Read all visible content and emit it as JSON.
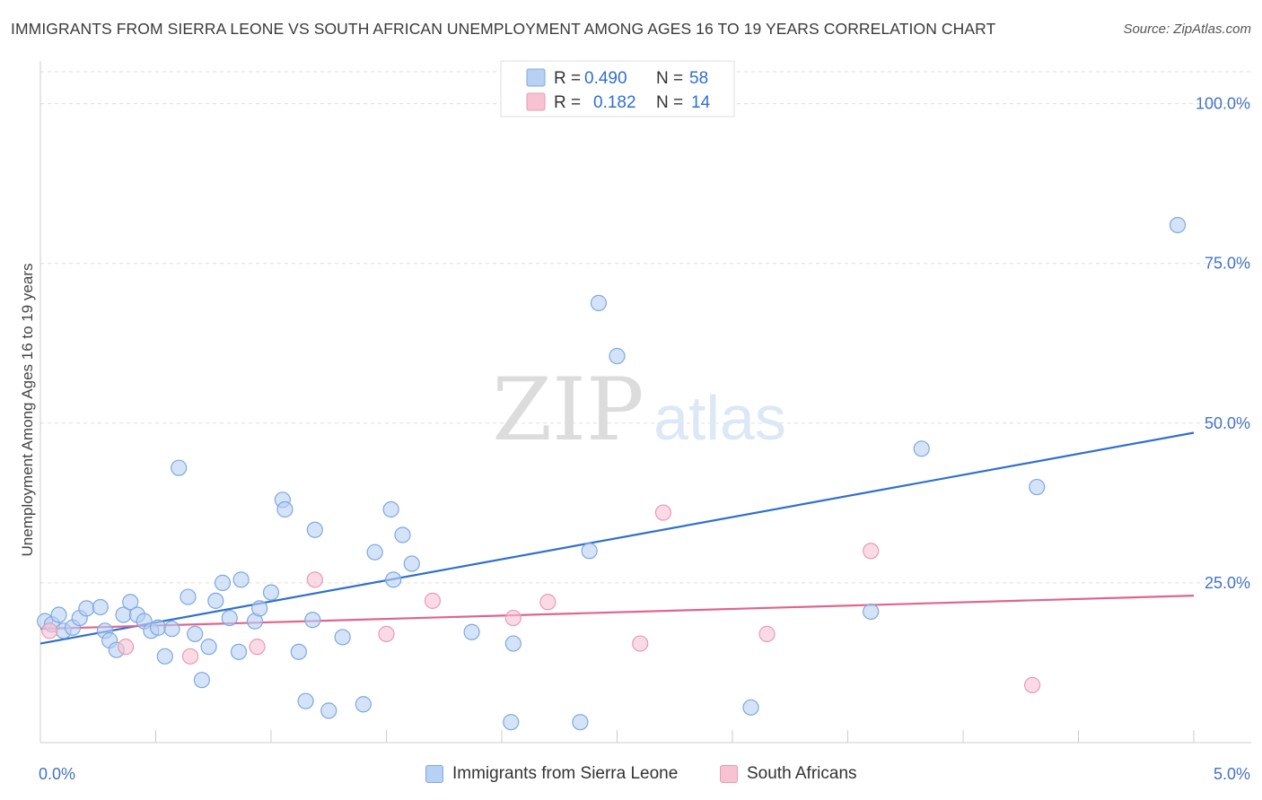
{
  "title": "IMMIGRANTS FROM SIERRA LEONE VS SOUTH AFRICAN UNEMPLOYMENT AMONG AGES 16 TO 19 YEARS CORRELATION CHART",
  "source": "Source: ZipAtlas.com",
  "watermark": {
    "zip": "ZIP",
    "atlas": "atlas"
  },
  "colors": {
    "blue_fill": "#b7d0f3",
    "blue_stroke": "#7ea8e0",
    "blue_line": "#2f6fd1",
    "pink_fill": "#f7c3d3",
    "pink_stroke": "#ea9ab3",
    "pink_line": "#e0648f",
    "axis_text": "#4472c4",
    "grid": "#dddddd"
  },
  "legend": {
    "series1": {
      "r_label": "R =",
      "r_value": "0.490",
      "n_label": "N =",
      "n_value": "58"
    },
    "series2": {
      "r_label": "R =",
      "r_value": "0.182",
      "n_label": "N =",
      "n_value": "14"
    }
  },
  "chart_data": {
    "type": "scatter",
    "title": "IMMIGRANTS FROM SIERRA LEONE VS SOUTH AFRICAN UNEMPLOYMENT AMONG AGES 16 TO 19 YEARS CORRELATION CHART",
    "xlabel": "",
    "ylabel": "Unemployment Among Ages 16 to 19 years",
    "xlim": [
      0,
      5
    ],
    "ylim": [
      0,
      105
    ],
    "x_tick_labels": [
      "0.0%",
      "5.0%"
    ],
    "y_ticks": [
      25,
      50,
      75,
      100
    ],
    "y_tick_labels": [
      "25.0%",
      "50.0%",
      "75.0%",
      "100.0%"
    ],
    "grid": true,
    "series": [
      {
        "name": "Immigrants from Sierra Leone",
        "color": "blue",
        "points": [
          [
            0.02,
            19.0
          ],
          [
            0.05,
            18.5
          ],
          [
            0.08,
            20.0
          ],
          [
            0.1,
            17.5
          ],
          [
            0.14,
            18.0
          ],
          [
            0.17,
            19.5
          ],
          [
            0.2,
            21.0
          ],
          [
            0.26,
            21.2
          ],
          [
            0.28,
            17.5
          ],
          [
            0.3,
            16.0
          ],
          [
            0.33,
            14.5
          ],
          [
            0.36,
            20.0
          ],
          [
            0.39,
            22.0
          ],
          [
            0.42,
            20.0
          ],
          [
            0.45,
            19.0
          ],
          [
            0.48,
            17.5
          ],
          [
            0.51,
            18.0
          ],
          [
            0.54,
            13.5
          ],
          [
            0.57,
            17.8
          ],
          [
            0.6,
            43.0
          ],
          [
            0.64,
            22.8
          ],
          [
            0.67,
            17.0
          ],
          [
            0.7,
            9.8
          ],
          [
            0.73,
            15.0
          ],
          [
            0.76,
            22.2
          ],
          [
            0.79,
            25.0
          ],
          [
            0.82,
            19.5
          ],
          [
            0.86,
            14.2
          ],
          [
            0.87,
            25.5
          ],
          [
            0.93,
            19.0
          ],
          [
            0.95,
            21.0
          ],
          [
            1.0,
            23.5
          ],
          [
            1.05,
            38.0
          ],
          [
            1.06,
            36.5
          ],
          [
            1.12,
            14.2
          ],
          [
            1.15,
            6.5
          ],
          [
            1.18,
            19.2
          ],
          [
            1.19,
            33.3
          ],
          [
            1.25,
            5.0
          ],
          [
            1.31,
            16.5
          ],
          [
            1.4,
            6.0
          ],
          [
            1.45,
            29.8
          ],
          [
            1.52,
            36.5
          ],
          [
            1.53,
            25.5
          ],
          [
            1.57,
            32.5
          ],
          [
            1.61,
            28.0
          ],
          [
            1.87,
            17.3
          ],
          [
            2.04,
            3.2
          ],
          [
            2.05,
            15.5
          ],
          [
            2.34,
            3.2
          ],
          [
            2.38,
            30.0
          ],
          [
            2.42,
            68.8
          ],
          [
            2.5,
            60.5
          ],
          [
            3.08,
            5.5
          ],
          [
            3.6,
            20.5
          ],
          [
            3.82,
            46.0
          ],
          [
            4.32,
            40.0
          ],
          [
            4.93,
            81.0
          ]
        ],
        "trend": {
          "x": [
            0,
            5
          ],
          "y": [
            15.5,
            48.5
          ]
        }
      },
      {
        "name": "South Africans",
        "color": "pink",
        "points": [
          [
            0.04,
            17.5
          ],
          [
            0.37,
            15.0
          ],
          [
            0.65,
            13.5
          ],
          [
            0.94,
            15.0
          ],
          [
            1.19,
            25.5
          ],
          [
            1.5,
            17.0
          ],
          [
            1.7,
            22.2
          ],
          [
            2.05,
            19.5
          ],
          [
            2.2,
            22.0
          ],
          [
            2.6,
            15.5
          ],
          [
            2.7,
            36.0
          ],
          [
            3.15,
            17.0
          ],
          [
            3.6,
            30.0
          ],
          [
            4.3,
            9.0
          ]
        ],
        "trend": {
          "x": [
            0,
            5
          ],
          "y": [
            17.8,
            23.0
          ]
        }
      }
    ]
  },
  "bottom_legend": [
    {
      "label": "Immigrants from Sierra Leone",
      "color": "blue"
    },
    {
      "label": "South Africans",
      "color": "pink"
    }
  ]
}
